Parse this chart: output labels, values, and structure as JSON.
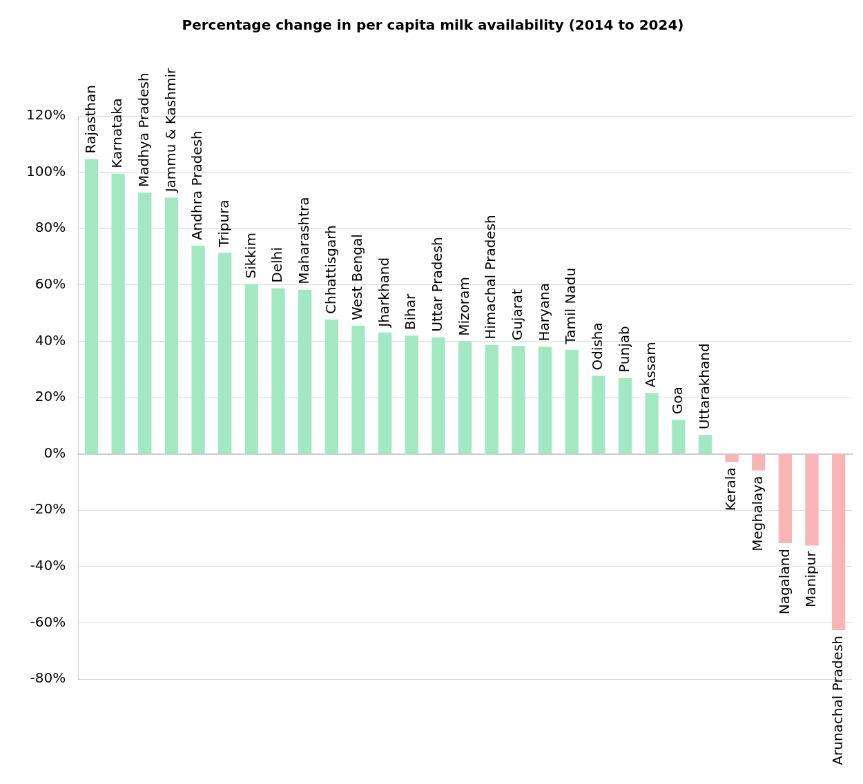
{
  "chart_data": {
    "type": "bar",
    "title": "Percentage change in per capita milk availability (2014 to 2024)",
    "categories": [
      "Rajasthan",
      "Karnataka",
      "Madhya Pradesh",
      "Jammu & Kashmir",
      "Andhra Pradesh",
      "Tripura",
      "Sikkim",
      "Delhi",
      "Maharashtra",
      "Chhattisgarh",
      "West Bengal",
      "Jharkhand",
      "Bihar",
      "Uttar Pradesh",
      "Mizoram",
      "Himachal Pradesh",
      "Gujarat",
      "Haryana",
      "Tamil Nadu",
      "Odisha",
      "Punjab",
      "Assam",
      "Goa",
      "Uttarakhand",
      "Kerala",
      "Meghalaya",
      "Nagaland",
      "Manipur",
      "Arunachal Pradesh"
    ],
    "values": [
      104.7,
      99.5,
      92.8,
      91.0,
      73.9,
      71.4,
      60.3,
      58.8,
      58.3,
      47.7,
      45.5,
      43.1,
      42.0,
      41.4,
      39.9,
      38.7,
      38.3,
      38.0,
      37.0,
      27.7,
      26.9,
      21.6,
      12.1,
      6.7,
      -2.9,
      -5.9,
      -31.7,
      -32.6,
      -62.6
    ],
    "colors": [
      "#a2e9c3",
      "#a2e9c3",
      "#a2e9c3",
      "#a2e9c3",
      "#a2e9c3",
      "#a2e9c3",
      "#a2e9c3",
      "#a2e9c3",
      "#a2e9c3",
      "#a2e9c3",
      "#a2e9c3",
      "#a2e9c3",
      "#a2e9c3",
      "#a2e9c3",
      "#a2e9c3",
      "#a2e9c3",
      "#a2e9c3",
      "#a2e9c3",
      "#a2e9c3",
      "#a2e9c3",
      "#a2e9c3",
      "#a2e9c3",
      "#a2e9c3",
      "#a2e9c3",
      "#f9b4b6",
      "#f9b4b6",
      "#f9b4b6",
      "#f9b4b6",
      "#f9b4b6"
    ],
    "ylim": [
      -80,
      120
    ],
    "yticks": [
      {
        "value": -80,
        "label": "-80%"
      },
      {
        "value": -60,
        "label": "-60%"
      },
      {
        "value": -40,
        "label": "-40%"
      },
      {
        "value": -20,
        "label": "-20%"
      },
      {
        "value": 0,
        "label": "0%"
      },
      {
        "value": 20,
        "label": "20%"
      },
      {
        "value": 40,
        "label": "40%"
      },
      {
        "value": 60,
        "label": "60%"
      },
      {
        "value": 80,
        "label": "80%"
      },
      {
        "value": 100,
        "label": "100%"
      },
      {
        "value": 120,
        "label": "120%"
      }
    ],
    "grid": "y"
  }
}
